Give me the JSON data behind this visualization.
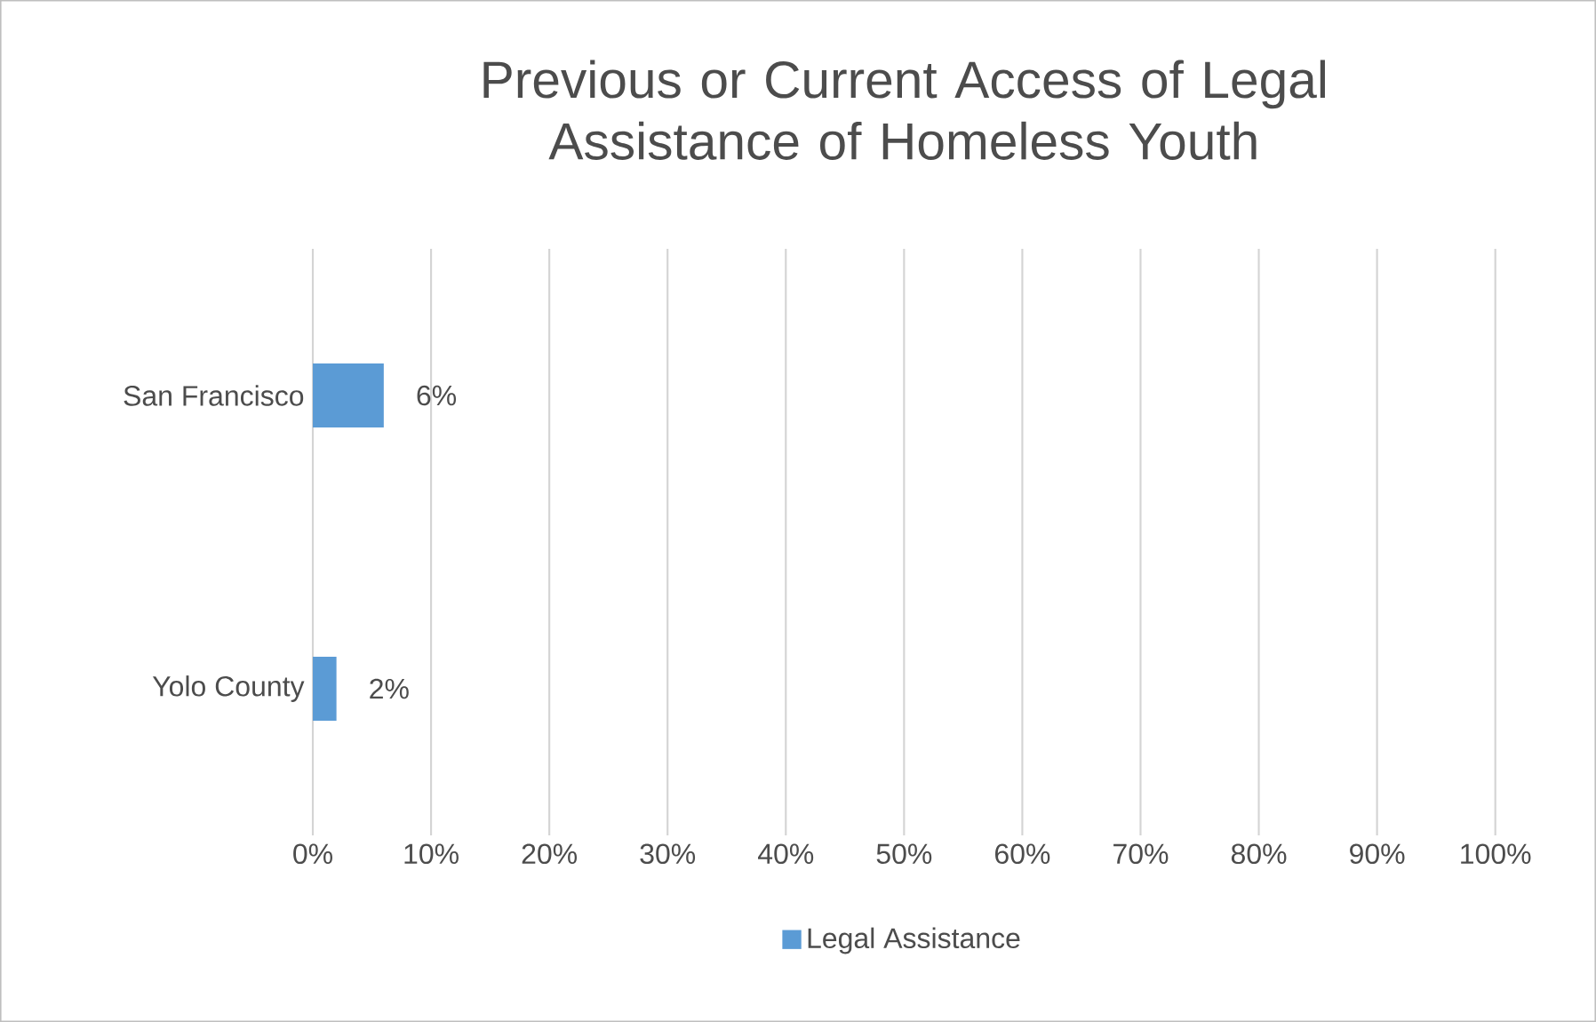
{
  "chart_data": {
    "type": "bar",
    "orientation": "horizontal",
    "title": "Previous or Current Access of Legal Assistance of Homeless Youth",
    "categories": [
      "San Francisco",
      "Yolo County"
    ],
    "series": [
      {
        "name": "Legal Assistance",
        "color": "#5b9bd5",
        "values": [
          6,
          2
        ],
        "value_labels": [
          "6%",
          "2%"
        ]
      }
    ],
    "xlim": [
      0,
      100
    ],
    "xticks": [
      {
        "value": 0,
        "label": "0%"
      },
      {
        "value": 10,
        "label": "10%"
      },
      {
        "value": 20,
        "label": "20%"
      },
      {
        "value": 30,
        "label": "30%"
      },
      {
        "value": 40,
        "label": "40%"
      },
      {
        "value": 50,
        "label": "50%"
      },
      {
        "value": 60,
        "label": "60%"
      },
      {
        "value": 70,
        "label": "70%"
      },
      {
        "value": 80,
        "label": "80%"
      },
      {
        "value": 90,
        "label": "90%"
      },
      {
        "value": 100,
        "label": "100%"
      }
    ],
    "grid": "x",
    "legend": "bottom"
  }
}
